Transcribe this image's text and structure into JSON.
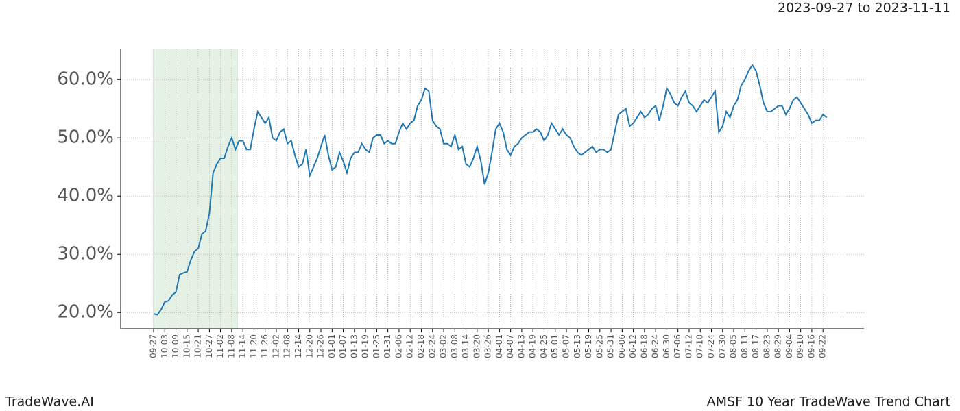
{
  "chart_data": {
    "type": "line",
    "subtitle": "2023-09-27 to 2023-11-11",
    "footer_left": "TradeWave.AI",
    "footer_right": "AMSF 10 Year TradeWave Trend Chart",
    "categories": [
      "09-27",
      null,
      null,
      "10-03",
      null,
      null,
      "10-09",
      null,
      null,
      "10-15",
      null,
      null,
      "10-21",
      null,
      null,
      "10-27",
      null,
      null,
      "11-02",
      null,
      null,
      "11-08",
      null,
      null,
      "11-14",
      null,
      null,
      "11-20",
      null,
      null,
      "11-26",
      null,
      null,
      "12-02",
      null,
      null,
      "12-08",
      null,
      null,
      "12-14",
      null,
      null,
      "12-20",
      null,
      null,
      "12-26",
      null,
      null,
      "01-01",
      null,
      null,
      "01-07",
      null,
      null,
      "01-13",
      null,
      null,
      "01-19",
      null,
      null,
      "01-25",
      null,
      null,
      "01-31",
      null,
      null,
      "02-06",
      null,
      null,
      "02-12",
      null,
      null,
      "02-18",
      null,
      null,
      "02-24",
      null,
      null,
      "03-02",
      null,
      null,
      "03-08",
      null,
      null,
      "03-14",
      null,
      null,
      "03-20",
      null,
      null,
      "03-26",
      null,
      null,
      "04-01",
      null,
      null,
      "04-07",
      null,
      null,
      "04-13",
      null,
      null,
      "04-19",
      null,
      null,
      "04-25",
      null,
      null,
      "05-01",
      null,
      null,
      "05-07",
      null,
      null,
      "05-13",
      null,
      null,
      "05-19",
      null,
      null,
      "05-25",
      null,
      null,
      "05-31",
      null,
      null,
      "06-06",
      null,
      null,
      "06-12",
      null,
      null,
      "06-18",
      null,
      null,
      "06-24",
      null,
      null,
      "06-30",
      null,
      null,
      "07-06",
      null,
      null,
      "07-12",
      null,
      null,
      "07-18",
      null,
      null,
      "07-24",
      null,
      null,
      "07-30",
      null,
      null,
      "08-05",
      null,
      null,
      "08-11",
      null,
      null,
      "08-17",
      null,
      null,
      "08-23",
      null,
      null,
      "08-29",
      null,
      null,
      "09-04",
      null,
      null,
      "09-10",
      null,
      null,
      "09-16",
      null,
      null,
      "09-22",
      null
    ],
    "series": [
      {
        "color": "#1f77b4",
        "values": [
          19.8,
          19.6,
          20.5,
          21.8,
          22.0,
          23.0,
          23.5,
          26.5,
          26.8,
          27.0,
          29.0,
          30.5,
          31.0,
          33.5,
          34.0,
          37.0,
          44.0,
          45.5,
          46.5,
          46.5,
          48.5,
          50.0,
          48.0,
          49.5,
          49.5,
          48.0,
          48.0,
          51.5,
          54.5,
          53.5,
          52.5,
          53.5,
          50.0,
          49.5,
          51.0,
          51.5,
          49.0,
          49.5,
          47.0,
          45.0,
          45.5,
          48.0,
          43.5,
          45.0,
          46.5,
          48.5,
          50.5,
          47.0,
          44.5,
          45.0,
          47.5,
          46.0,
          44.0,
          46.5,
          47.5,
          47.5,
          49.0,
          48.0,
          47.5,
          50.0,
          50.5,
          50.5,
          49.0,
          49.5,
          49.0,
          49.0,
          51.0,
          52.5,
          51.5,
          52.5,
          53.0,
          55.5,
          56.5,
          58.5,
          58.0,
          53.0,
          52.0,
          51.5,
          49.0,
          49.0,
          48.5,
          50.5,
          48.0,
          48.5,
          45.5,
          45.0,
          46.5,
          48.5,
          46.0,
          42.0,
          44.0,
          47.5,
          51.5,
          52.5,
          51.0,
          48.0,
          47.0,
          48.5,
          49.0,
          50.0,
          50.5,
          51.0,
          51.0,
          51.5,
          51.0,
          49.5,
          50.5,
          52.5,
          51.5,
          50.5,
          51.5,
          50.5,
          50.0,
          48.5,
          47.5,
          47.0,
          47.5,
          48.0,
          48.5,
          47.5,
          48.0,
          48.0,
          47.5,
          48.0,
          51.0,
          54.0,
          54.5,
          55.0,
          52.0,
          52.5,
          53.5,
          54.5,
          53.5,
          54.0,
          55.0,
          55.5,
          53.0,
          55.5,
          58.5,
          57.5,
          56.0,
          55.5,
          57.0,
          58.0,
          56.0,
          55.5,
          54.5,
          55.5,
          56.5,
          56.0,
          57.0,
          58.0,
          51.0,
          52.0,
          54.5,
          53.5,
          55.5,
          56.5,
          59.0,
          60.0,
          61.5,
          62.5,
          61.5,
          59.0,
          56.0,
          54.5,
          54.5,
          55.0,
          55.5,
          55.5,
          54.0,
          55.0,
          56.5,
          57.0,
          56.0,
          55.0,
          54.0,
          52.5,
          53.0,
          53.0,
          54.0,
          53.5
        ]
      }
    ],
    "highlight": {
      "from": 0,
      "to": 22.5,
      "color": "#d5e8d4"
    },
    "ylim": [
      17.2,
      65.2
    ],
    "yticks": [
      {
        "value": 20,
        "label": "20.0%"
      },
      {
        "value": 30,
        "label": "30.0%"
      },
      {
        "value": 40,
        "label": "40.0%"
      },
      {
        "value": 50,
        "label": "50.0%"
      },
      {
        "value": 60,
        "label": "60.0%"
      }
    ],
    "grid": true
  }
}
